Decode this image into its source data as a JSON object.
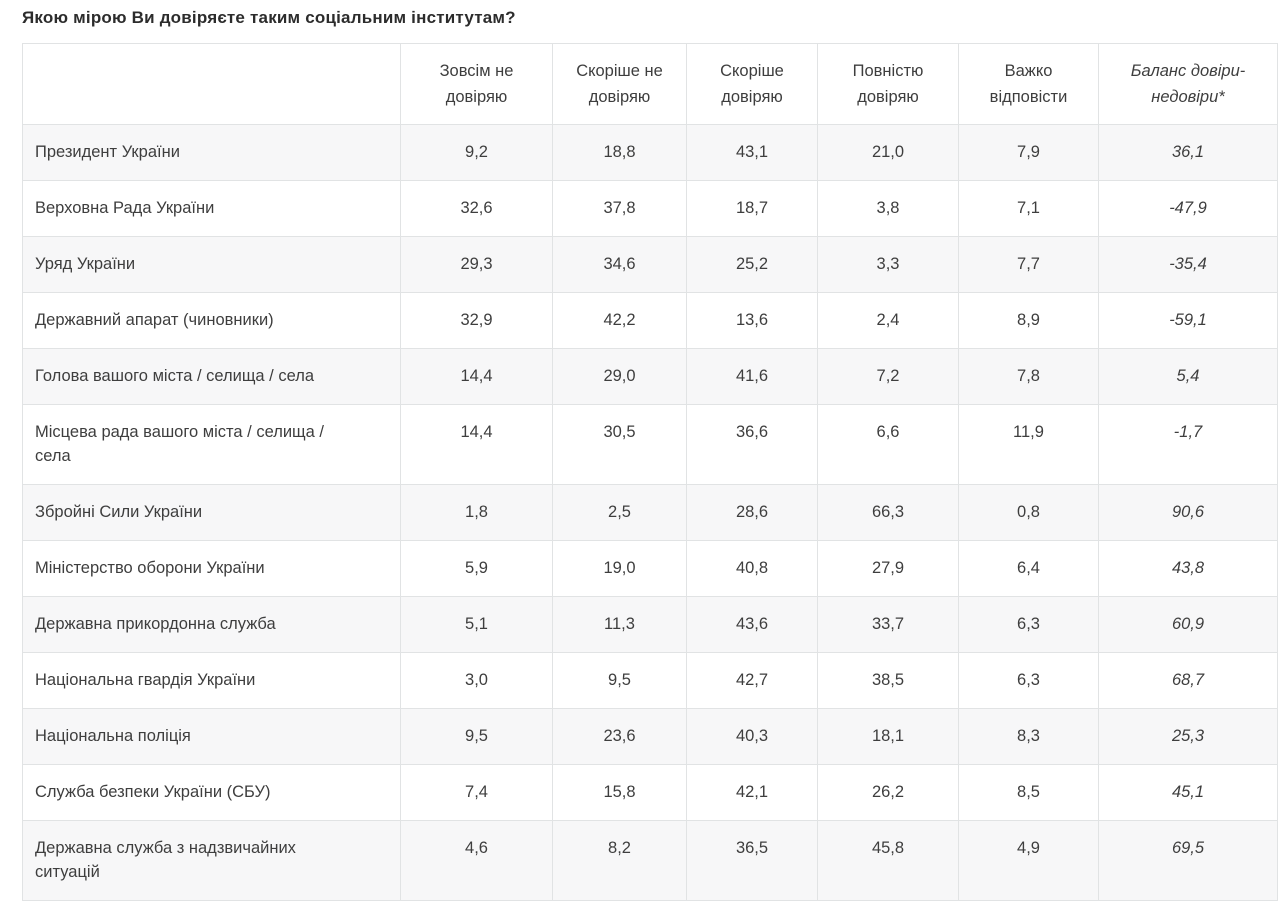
{
  "page": {
    "title": "Якою мірою Ви довіряєте таким соціальним інститутам?"
  },
  "colors": {
    "row_alt_bg": "#f7f7f8",
    "border": "#e1e3e4",
    "text": "#3e3e3e",
    "title_text": "#2c2c2c"
  },
  "chart_data": {
    "type": "table",
    "title": "Якою мірою Ви довіряєте таким соціальним інститутам?",
    "columns": [
      "",
      "Зовсім не довіряю",
      "Скоріше не довіряю",
      "Скоріше довіряю",
      "Повністю довіряю",
      "Важко відповісти",
      "Баланс довіри-недовіри*"
    ],
    "rows": [
      {
        "name": "Президент України",
        "values": [
          "9,2",
          "18,8",
          "43,1",
          "21,0",
          "7,9",
          "36,1"
        ]
      },
      {
        "name": "Верховна Рада України",
        "values": [
          "32,6",
          "37,8",
          "18,7",
          "3,8",
          "7,1",
          "-47,9"
        ]
      },
      {
        "name": "Уряд України",
        "values": [
          "29,3",
          "34,6",
          "25,2",
          "3,3",
          "7,7",
          "-35,4"
        ]
      },
      {
        "name": "Державний апарат (чиновники)",
        "values": [
          "32,9",
          "42,2",
          "13,6",
          "2,4",
          "8,9",
          "-59,1"
        ]
      },
      {
        "name": "Голова вашого міста / селища / села",
        "values": [
          "14,4",
          "29,0",
          "41,6",
          "7,2",
          "7,8",
          "5,4"
        ]
      },
      {
        "name": "Місцева рада вашого міста / селища / села",
        "values": [
          "14,4",
          "30,5",
          "36,6",
          "6,6",
          "11,9",
          "-1,7"
        ]
      },
      {
        "name": "Збройні Сили України",
        "values": [
          "1,8",
          "2,5",
          "28,6",
          "66,3",
          "0,8",
          "90,6"
        ]
      },
      {
        "name": "Міністерство оборони України",
        "values": [
          "5,9",
          "19,0",
          "40,8",
          "27,9",
          "6,4",
          "43,8"
        ]
      },
      {
        "name": "Державна прикордонна служба",
        "values": [
          "5,1",
          "11,3",
          "43,6",
          "33,7",
          "6,3",
          "60,9"
        ]
      },
      {
        "name": "Національна гвардія України",
        "values": [
          "3,0",
          "9,5",
          "42,7",
          "38,5",
          "6,3",
          "68,7"
        ]
      },
      {
        "name": "Національна поліція",
        "values": [
          "9,5",
          "23,6",
          "40,3",
          "18,1",
          "8,3",
          "25,3"
        ]
      },
      {
        "name": "Служба безпеки України (СБУ)",
        "values": [
          "7,4",
          "15,8",
          "42,1",
          "26,2",
          "8,5",
          "45,1"
        ]
      },
      {
        "name": "Державна служба з надзвичайних ситуацій",
        "values": [
          "4,6",
          "8,2",
          "36,5",
          "45,8",
          "4,9",
          "69,5"
        ]
      }
    ]
  }
}
